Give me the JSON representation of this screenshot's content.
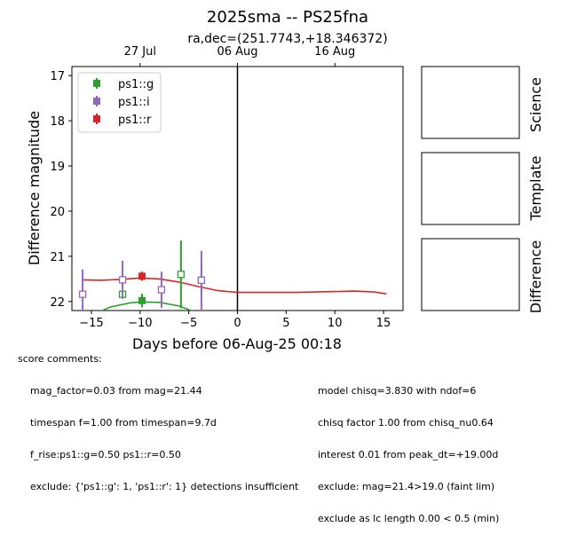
{
  "chart_data": {
    "type": "scatter",
    "title": "2025sma -- PS25fna",
    "subtitle": "ra,dec=(251.7743,+18.346372)",
    "xlabel": "Days before 06-Aug-25 00:18",
    "ylabel": "Difference magnitude",
    "xlim": [
      -17,
      17
    ],
    "ylim": [
      22.2,
      16.8
    ],
    "x_ticks": [
      -15,
      -10,
      -5,
      0,
      5,
      10,
      15
    ],
    "x_tick_labels": [
      "−15",
      "−10",
      "−5",
      "0",
      "5",
      "10",
      "15"
    ],
    "y_ticks": [
      17,
      18,
      19,
      20,
      21,
      22
    ],
    "y_tick_labels": [
      "17",
      "18",
      "19",
      "20",
      "21",
      "22"
    ],
    "top_axis": {
      "ticks": [
        -10,
        0,
        10
      ],
      "labels": [
        "27 Jul",
        "06 Aug",
        "16 Aug"
      ]
    },
    "reference_line_x": 0,
    "legend_position": "upper-left",
    "series": [
      {
        "name": "ps1::g",
        "color": "#2ca02c",
        "detections": [
          {
            "x": -9.8,
            "y": 21.98,
            "err": 0.15
          }
        ],
        "limits": [
          {
            "x": -11.8,
            "y": 21.84,
            "err": 0.0
          },
          {
            "x": -5.8,
            "y": 21.4,
            "err": 0.75
          },
          {
            "x": -3.7,
            "y": 21.53,
            "err": 0.3
          }
        ],
        "model": {
          "x": [
            -15.5,
            -13,
            -11,
            -9.8,
            -8,
            -6,
            -4.5,
            -3
          ],
          "y": [
            22.35,
            22.12,
            22.03,
            22.01,
            22.02,
            22.1,
            22.22,
            22.38
          ]
        }
      },
      {
        "name": "ps1::i",
        "color": "#9467bd",
        "detections": [],
        "limits": [
          {
            "x": -15.9,
            "y": 21.84,
            "err": 0.55
          },
          {
            "x": -11.8,
            "y": 21.52,
            "err": 0.42
          },
          {
            "x": -7.8,
            "y": 21.74,
            "err": 0.4
          },
          {
            "x": -3.7,
            "y": 21.53,
            "err": 0.65
          }
        ]
      },
      {
        "name": "ps1::r",
        "color": "#d62728",
        "detections": [
          {
            "x": -9.8,
            "y": 21.44,
            "err": 0.1
          }
        ],
        "limits": [],
        "model": {
          "x": [
            -16,
            -14,
            -12,
            -10,
            -8,
            -6,
            -4,
            -2,
            0,
            2,
            4,
            6,
            8,
            10,
            12,
            14,
            15.3
          ],
          "y": [
            21.52,
            21.53,
            21.51,
            21.48,
            21.5,
            21.57,
            21.67,
            21.76,
            21.8,
            21.8,
            21.8,
            21.8,
            21.79,
            21.78,
            21.77,
            21.79,
            21.83
          ]
        }
      }
    ]
  },
  "panels": {
    "science": "Science",
    "template": "Template",
    "difference": "Difference"
  },
  "comments": {
    "header": "score comments:",
    "left": [
      "mag_factor=0.03 from mag=21.44",
      "timespan f=1.00 from timespan=9.7d",
      "f_rise:ps1::g=0.50 ps1::r=0.50",
      "exclude: {'ps1::g': 1, 'ps1::r': 1} detections insufficient"
    ],
    "right": [
      "model chisq=3.830 with ndof=6",
      "chisq factor 1.00 from chisq_nu0.64",
      "interest 0.01 from peak_dt=+19.00d",
      "exclude: mag=21.4>19.0 (faint lim)",
      "exclude as lc length 0.00 < 0.5 (min)"
    ]
  }
}
